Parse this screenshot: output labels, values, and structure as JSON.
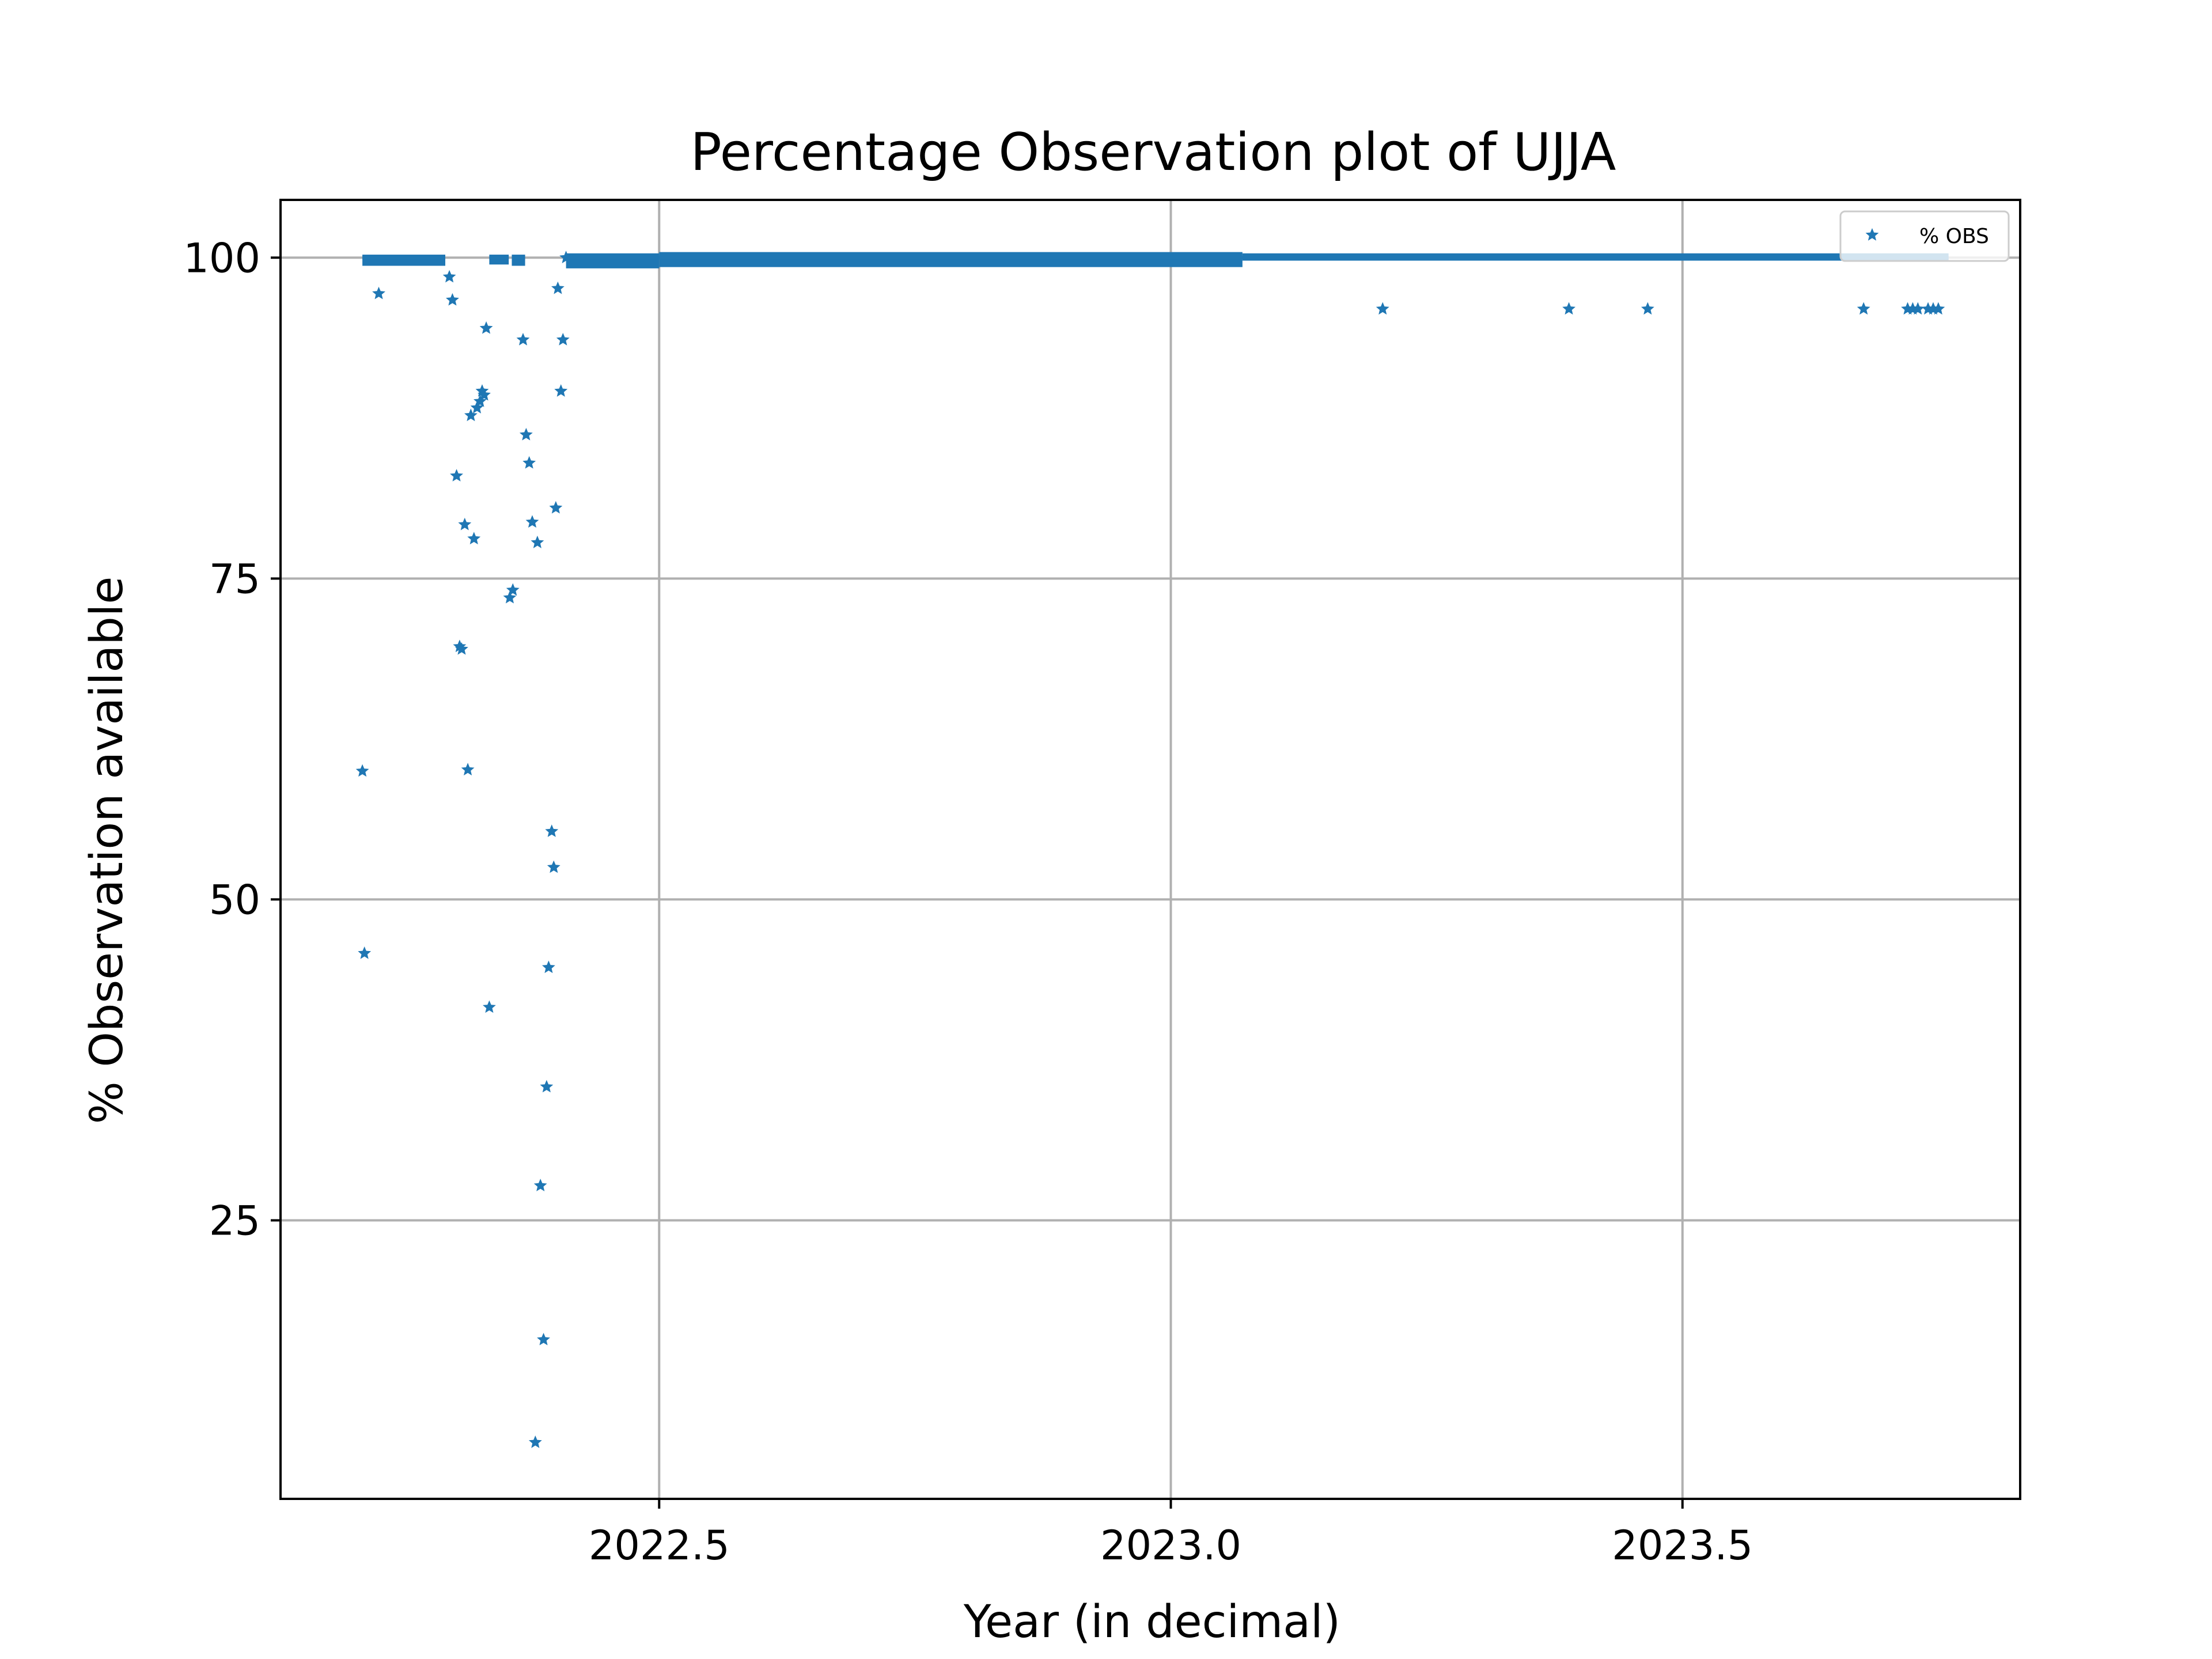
{
  "chart_data": {
    "type": "scatter",
    "title": "Percentage Observation plot of UJJA",
    "xlabel": "Year (in decimal)",
    "ylabel": "% Observation available",
    "xlim": [
      2022.13,
      2023.83
    ],
    "ylim": [
      3.3,
      104.5
    ],
    "xticks": [
      2022.5,
      2023.0,
      2023.5
    ],
    "xtick_labels": [
      "2022.5",
      "2023.0",
      "2023.5"
    ],
    "yticks": [
      25,
      50,
      75,
      100
    ],
    "ytick_labels": [
      "25",
      "50",
      "75",
      "100"
    ],
    "grid": true,
    "legend": {
      "position": "top-right",
      "entries": [
        "% OBS"
      ]
    },
    "marker": "star",
    "color": "#1f77b4",
    "series": [
      {
        "name": "% OBS",
        "x": [
          2022.21,
          2022.212,
          2022.226,
          2022.295,
          2022.298,
          2022.302,
          2022.305,
          2022.307,
          2022.31,
          2022.313,
          2022.316,
          2022.319,
          2022.322,
          2022.325,
          2022.327,
          2022.329,
          2022.331,
          2022.334,
          2022.354,
          2022.357,
          2022.367,
          2022.37,
          2022.373,
          2022.376,
          2022.379,
          2022.381,
          2022.384,
          2022.387,
          2022.39,
          2022.392,
          2022.395,
          2022.397,
          2022.399,
          2022.401,
          2022.404,
          2022.406,
          2022.409,
          2023.207,
          2023.389,
          2023.466,
          2023.677,
          2023.72,
          2023.725,
          2023.73,
          2023.74,
          2023.745,
          2023.75
        ],
        "y": [
          60.0,
          45.8,
          97.2,
          98.5,
          96.7,
          83.0,
          69.7,
          69.5,
          79.2,
          60.1,
          87.7,
          78.1,
          88.3,
          88.8,
          89.6,
          89.3,
          94.5,
          41.6,
          73.5,
          74.1,
          93.6,
          86.2,
          84.0,
          79.4,
          7.7,
          77.8,
          27.7,
          15.7,
          35.4,
          44.7,
          55.3,
          52.5,
          80.5,
          97.6,
          89.6,
          93.6,
          100.0,
          96.0,
          96.0,
          96.0,
          96.0,
          96.0,
          96.0,
          96.0,
          96.0,
          96.0,
          96.0
        ]
      }
    ],
    "dense_band": {
      "description": "continuous daily observations near 100%",
      "segments": [
        {
          "x_start": 2022.21,
          "x_end": 2022.291,
          "y_min": 99.5,
          "y_max": 100.1
        },
        {
          "x_start": 2022.334,
          "x_end": 2022.353,
          "y_min": 99.6,
          "y_max": 100.1
        },
        {
          "x_start": 2022.356,
          "x_end": 2022.369,
          "y_min": 99.5,
          "y_max": 100.1
        },
        {
          "x_start": 2022.409,
          "x_end": 2022.5,
          "y_min": 99.3,
          "y_max": 100.2
        },
        {
          "x_start": 2022.5,
          "x_end": 2023.07,
          "y_min": 99.4,
          "y_max": 100.3
        },
        {
          "x_start": 2023.07,
          "x_end": 2023.76,
          "y_min": 99.9,
          "y_max": 100.2
        }
      ]
    }
  }
}
